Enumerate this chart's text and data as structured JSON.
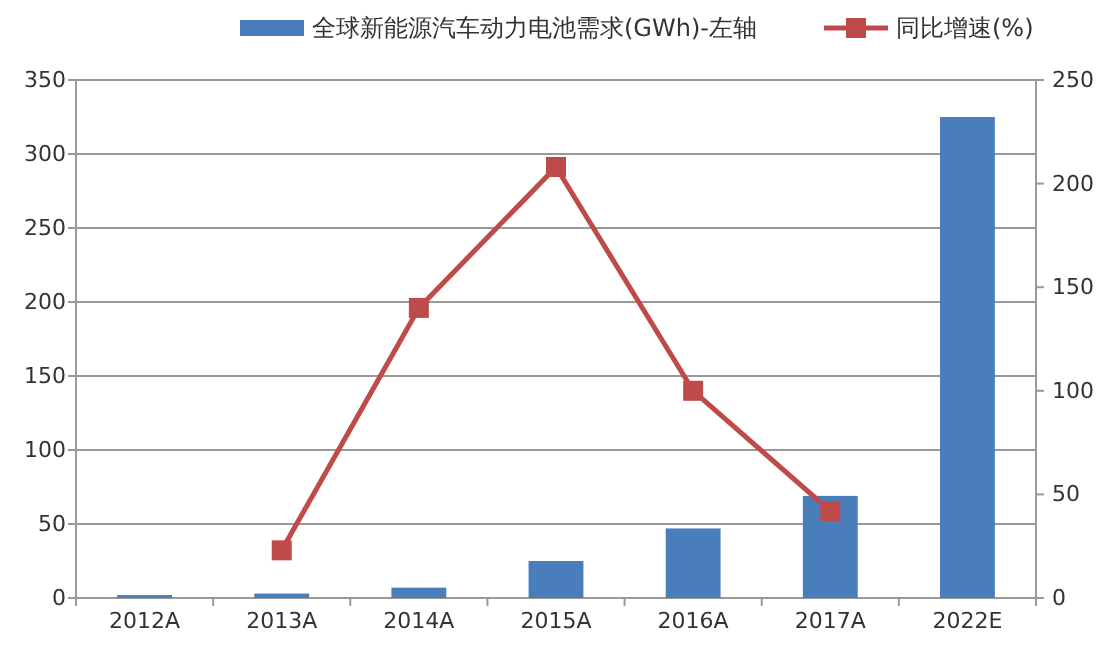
{
  "chart_data": {
    "type": "bar",
    "categories": [
      "2012A",
      "2013A",
      "2014A",
      "2015A",
      "2016A",
      "2017A",
      "2022E"
    ],
    "series": [
      {
        "name": "全球新能源汽车动力电池需求(GWh)-左轴",
        "color": "#4a7ebb",
        "values": [
          2,
          3,
          7,
          25,
          47,
          69,
          325
        ]
      },
      {
        "name": "同比增速(%)",
        "type": "line",
        "axis": "y2",
        "color": "#be4b48",
        "values": [
          null,
          23,
          140,
          208,
          100,
          42,
          null
        ]
      }
    ],
    "ylim": [
      0,
      350
    ],
    "yticks": [
      0,
      50,
      100,
      150,
      200,
      250,
      300,
      350
    ],
    "y2lim": [
      0,
      250
    ],
    "y2ticks": [
      0,
      50,
      100,
      150,
      200,
      250
    ],
    "grid": "y",
    "legend": "top",
    "marker": "square"
  }
}
